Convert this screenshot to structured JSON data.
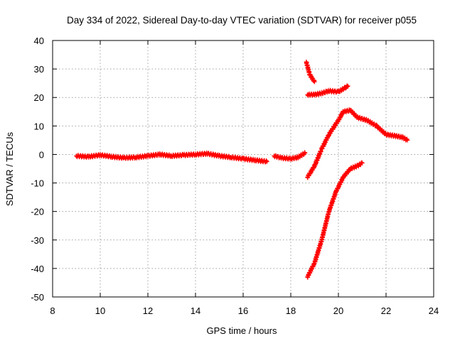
{
  "chart_data": {
    "type": "scatter",
    "title": "Day 334 of 2022, Sidereal Day-to-day VTEC variation (SDTVAR) for receiver p055",
    "xlabel": "GPS time / hours",
    "ylabel": "SDTVAR / TECUs",
    "xlim": [
      8,
      24
    ],
    "ylim": [
      -50,
      40
    ],
    "xticks": [
      "8",
      "10",
      "12",
      "14",
      "16",
      "18",
      "20",
      "22",
      "24"
    ],
    "yticks": [
      "-50",
      "-40",
      "-30",
      "-20",
      "-10",
      "0",
      "10",
      "20",
      "30",
      "40"
    ],
    "grid": true,
    "series_color": "#ff0000",
    "marker": "plus",
    "segments": [
      {
        "x": [
          9.0,
          9.5,
          10.0,
          10.5,
          11.0,
          11.5,
          12.0,
          12.5,
          13.0,
          13.5,
          14.0,
          14.5,
          15.0,
          15.5,
          16.0,
          16.5,
          17.0
        ],
        "y": [
          -0.5,
          -0.8,
          -0.2,
          -0.8,
          -1.2,
          -1.0,
          -0.5,
          0.0,
          -0.5,
          -0.2,
          0.0,
          0.3,
          -0.5,
          -1.0,
          -1.5,
          -2.0,
          -2.5
        ]
      },
      {
        "x": [
          17.3,
          17.6,
          18.0,
          18.3,
          18.6
        ],
        "y": [
          -0.5,
          -1.2,
          -1.5,
          -1.0,
          0.5
        ]
      },
      {
        "x": [
          18.65,
          18.8,
          19.0
        ],
        "y": [
          32.5,
          28.0,
          25.5
        ]
      },
      {
        "x": [
          18.7,
          19.0,
          19.3,
          19.6,
          20.0,
          20.3,
          20.4
        ],
        "y": [
          21.0,
          21.0,
          21.5,
          22.3,
          22.0,
          23.5,
          24.0
        ]
      },
      {
        "x": [
          18.7,
          19.0,
          19.3,
          19.6,
          20.0,
          20.2,
          20.5,
          20.8,
          21.2,
          21.6,
          22.0,
          22.4,
          22.7,
          22.9
        ],
        "y": [
          -8.0,
          -4.0,
          2.0,
          7.0,
          12.0,
          15.0,
          15.5,
          13.0,
          12.0,
          10.0,
          7.0,
          6.5,
          6.0,
          5.0
        ]
      },
      {
        "x": [
          18.7,
          19.0,
          19.3,
          19.6,
          19.9,
          20.2,
          20.5,
          20.8,
          21.0
        ],
        "y": [
          -43.0,
          -38.0,
          -30.0,
          -20.0,
          -13.0,
          -8.0,
          -5.0,
          -4.0,
          -3.0
        ]
      }
    ]
  }
}
